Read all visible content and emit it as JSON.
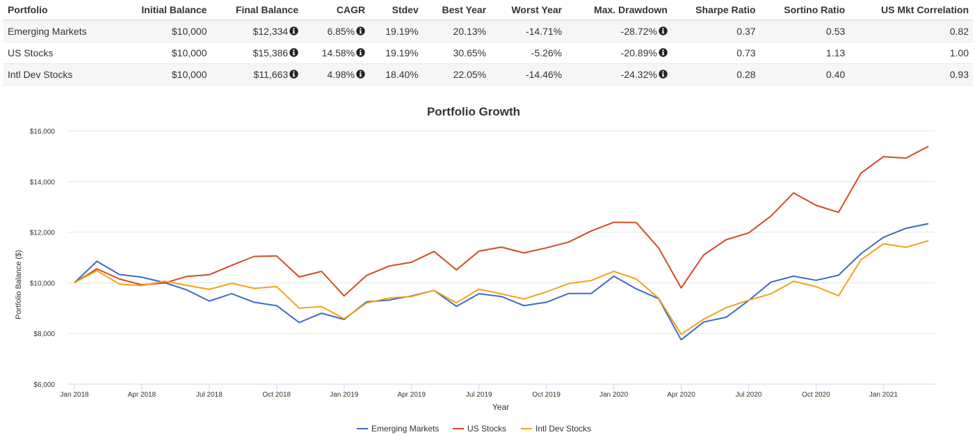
{
  "table": {
    "columns": [
      "Portfolio",
      "Initial Balance",
      "Final Balance",
      "CAGR",
      "Stdev",
      "Best Year",
      "Worst Year",
      "Max. Drawdown",
      "Sharpe Ratio",
      "Sortino Ratio",
      "US Mkt Correlation"
    ],
    "rows": [
      {
        "portfolio": "Emerging Markets",
        "initial_balance": "$10,000",
        "final_balance": "$12,334",
        "cagr": "6.85%",
        "stdev": "19.19%",
        "best_year": "20.13%",
        "worst_year": "-14.71%",
        "max_drawdown": "-28.72%",
        "sharpe": "0.37",
        "sortino": "0.53",
        "us_mkt_corr": "0.82"
      },
      {
        "portfolio": "US Stocks",
        "initial_balance": "$10,000",
        "final_balance": "$15,386",
        "cagr": "14.58%",
        "stdev": "19.19%",
        "best_year": "30.65%",
        "worst_year": "-5.26%",
        "max_drawdown": "-20.89%",
        "sharpe": "0.73",
        "sortino": "1.13",
        "us_mkt_corr": "1.00"
      },
      {
        "portfolio": "Intl Dev Stocks",
        "initial_balance": "$10,000",
        "final_balance": "$11,663",
        "cagr": "4.98%",
        "stdev": "18.40%",
        "best_year": "22.05%",
        "worst_year": "-14.46%",
        "max_drawdown": "-24.32%",
        "sharpe": "0.28",
        "sortino": "0.40",
        "us_mkt_corr": "0.93"
      }
    ]
  },
  "icons": {
    "info": "info-circle-icon"
  },
  "chart_data": {
    "type": "line",
    "title": "Portfolio Growth",
    "xlabel": "Year",
    "ylabel": "Portfolio Balance ($)",
    "ylim": [
      6000,
      16000
    ],
    "yticks": [
      6000,
      8000,
      10000,
      12000,
      14000,
      16000
    ],
    "ytick_labels": [
      "$6,000",
      "$8,000",
      "$10,000",
      "$12,000",
      "$14,000",
      "$16,000"
    ],
    "xtick_labels": [
      "Jan 2018",
      "Apr 2018",
      "Jul 2018",
      "Oct 2018",
      "Jan 2019",
      "Apr 2019",
      "Jul 2019",
      "Oct 2019",
      "Jan 2020",
      "Apr 2020",
      "Jul 2020",
      "Oct 2020",
      "Jan 2021"
    ],
    "x": [
      "2018-01",
      "2018-02",
      "2018-03",
      "2018-04",
      "2018-05",
      "2018-06",
      "2018-07",
      "2018-08",
      "2018-09",
      "2018-10",
      "2018-11",
      "2018-12",
      "2019-01",
      "2019-02",
      "2019-03",
      "2019-04",
      "2019-05",
      "2019-06",
      "2019-07",
      "2019-08",
      "2019-09",
      "2019-10",
      "2019-11",
      "2019-12",
      "2020-01",
      "2020-02",
      "2020-03",
      "2020-04",
      "2020-05",
      "2020-06",
      "2020-07",
      "2020-08",
      "2020-09",
      "2020-10",
      "2020-11",
      "2020-12",
      "2021-01",
      "2021-02",
      "2021-03"
    ],
    "grid": true,
    "legend_position": "bottom",
    "series": [
      {
        "name": "Emerging Markets",
        "color": "#3a6bc4",
        "values": [
          10000,
          10850,
          10330,
          10220,
          10010,
          9720,
          9280,
          9570,
          9230,
          9100,
          8430,
          8800,
          8550,
          9250,
          9320,
          9480,
          9700,
          9070,
          9570,
          9460,
          9100,
          9230,
          9580,
          9580,
          10260,
          9760,
          9370,
          7750,
          8450,
          8640,
          9300,
          10030,
          10260,
          10100,
          10300,
          11150,
          11800,
          12150,
          12334
        ]
      },
      {
        "name": "US Stocks",
        "color": "#d24a23",
        "values": [
          10000,
          10550,
          10150,
          9920,
          9990,
          10250,
          10320,
          10690,
          11040,
          11060,
          10230,
          10450,
          9480,
          10290,
          10660,
          10810,
          11240,
          10510,
          11250,
          11410,
          11180,
          11380,
          11610,
          12050,
          12390,
          12380,
          11370,
          9800,
          11100,
          11700,
          11970,
          12640,
          13550,
          13060,
          12780,
          14330,
          14980,
          14920,
          15386
        ]
      },
      {
        "name": "Intl Dev Stocks",
        "color": "#f4a117",
        "values": [
          10000,
          10480,
          9950,
          9890,
          10060,
          9900,
          9740,
          9980,
          9780,
          9850,
          9000,
          9060,
          8580,
          9200,
          9400,
          9460,
          9700,
          9210,
          9750,
          9560,
          9360,
          9640,
          9970,
          10090,
          10450,
          10150,
          9390,
          7970,
          8560,
          9020,
          9310,
          9570,
          10060,
          9850,
          9490,
          10910,
          11540,
          11400,
          11663
        ]
      }
    ]
  }
}
